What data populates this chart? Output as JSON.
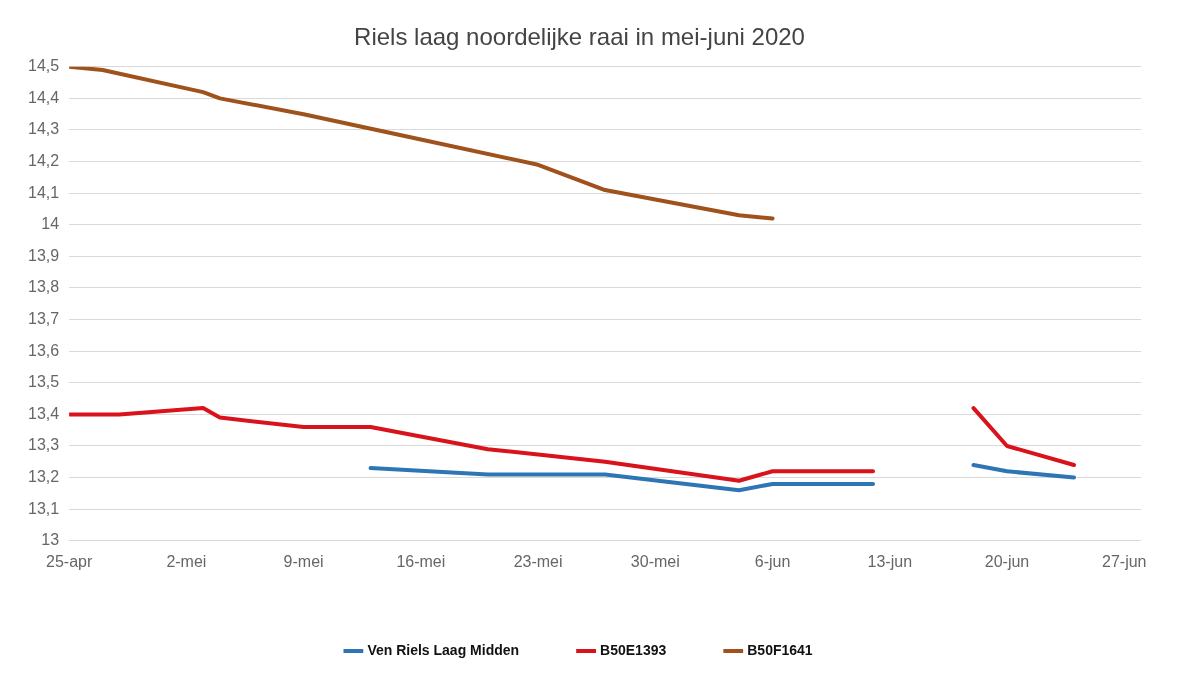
{
  "chart_data": {
    "type": "line",
    "title": "Riels laag noordelijke raai in mei-juni 2020",
    "xlim": [
      "2020-04-25",
      "2020-06-28"
    ],
    "xticks": [
      {
        "value": "2020-04-25",
        "label": "25-apr"
      },
      {
        "value": "2020-05-02",
        "label": "2-mei"
      },
      {
        "value": "2020-05-09",
        "label": "9-mei"
      },
      {
        "value": "2020-05-16",
        "label": "16-mei"
      },
      {
        "value": "2020-05-23",
        "label": "23-mei"
      },
      {
        "value": "2020-05-30",
        "label": "30-mei"
      },
      {
        "value": "2020-06-06",
        "label": "6-jun"
      },
      {
        "value": "2020-06-13",
        "label": "13-jun"
      },
      {
        "value": "2020-06-20",
        "label": "20-jun"
      },
      {
        "value": "2020-06-27",
        "label": "27-jun"
      }
    ],
    "ylim": [
      13,
      14.5
    ],
    "yticks": [
      {
        "value": 13,
        "label": "13"
      },
      {
        "value": 13.1,
        "label": "13,1"
      },
      {
        "value": 13.2,
        "label": "13,2"
      },
      {
        "value": 13.3,
        "label": "13,3"
      },
      {
        "value": 13.4,
        "label": "13,4"
      },
      {
        "value": 13.5,
        "label": "13,5"
      },
      {
        "value": 13.6,
        "label": "13,6"
      },
      {
        "value": 13.7,
        "label": "13,7"
      },
      {
        "value": 13.8,
        "label": "13,8"
      },
      {
        "value": 13.9,
        "label": "13,9"
      },
      {
        "value": 14,
        "label": "14"
      },
      {
        "value": 14.1,
        "label": "14,1"
      },
      {
        "value": 14.2,
        "label": "14,2"
      },
      {
        "value": 14.3,
        "label": "14,3"
      },
      {
        "value": 14.4,
        "label": "14,4"
      },
      {
        "value": 14.5,
        "label": "14,5"
      }
    ],
    "grid": "y",
    "legend": "bottom",
    "marker": "none",
    "line_style": "solid",
    "series": [
      {
        "name": "Ven Riels Laag Midden",
        "color": "#2e75b6",
        "x": [
          "2020-05-13",
          "2020-05-20",
          "2020-05-27",
          "2020-06-04",
          "2020-06-06",
          "2020-06-12",
          "2020-06-15",
          "2020-06-18",
          "2020-06-20",
          "2020-06-24"
        ],
        "values": [
          13.23,
          13.21,
          13.21,
          13.16,
          13.18,
          13.18,
          null,
          13.24,
          13.22,
          13.2
        ]
      },
      {
        "name": "B50E1393",
        "color": "#d9131b",
        "x": [
          "2020-04-25",
          "2020-04-28",
          "2020-05-03",
          "2020-05-04",
          "2020-05-09",
          "2020-05-13",
          "2020-05-20",
          "2020-05-27",
          "2020-06-04",
          "2020-06-06",
          "2020-06-12",
          "2020-06-15",
          "2020-06-18",
          "2020-06-20",
          "2020-06-24"
        ],
        "values": [
          13.4,
          13.4,
          13.42,
          13.39,
          13.36,
          13.36,
          13.29,
          13.25,
          13.19,
          13.22,
          13.22,
          null,
          13.42,
          13.3,
          13.24
        ]
      },
      {
        "name": "B50F1641",
        "color": "#a0521d",
        "x": [
          "2020-04-25",
          "2020-04-27",
          "2020-05-03",
          "2020-05-04",
          "2020-05-09",
          "2020-05-16",
          "2020-05-23",
          "2020-05-27",
          "2020-05-30",
          "2020-06-04",
          "2020-06-06"
        ],
        "values": [
          14.5,
          14.49,
          14.42,
          14.4,
          14.35,
          14.27,
          14.19,
          14.11,
          14.08,
          14.03,
          14.02
        ]
      }
    ]
  }
}
